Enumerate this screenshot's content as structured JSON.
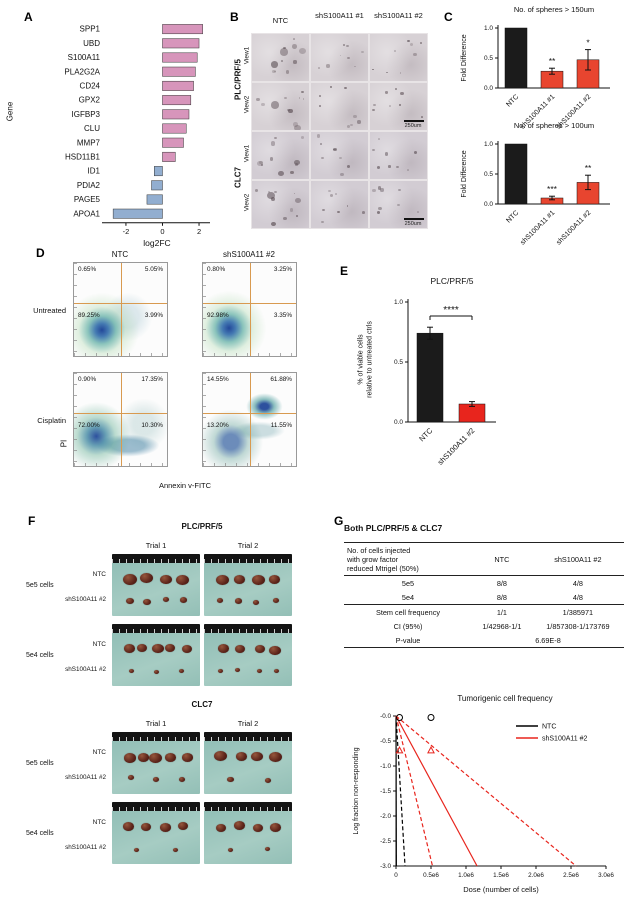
{
  "panelA": {
    "label": "A",
    "chart_data": {
      "type": "bar",
      "orientation": "horizontal",
      "xlabel": "log2FC",
      "ylabel": "Gene",
      "categories": [
        "SPP1",
        "UBD",
        "S100A11",
        "PLA2G2A",
        "CD24",
        "GPX2",
        "IGFBP3",
        "CLU",
        "MMP7",
        "HSD11B1",
        "ID1",
        "PDIA2",
        "PAGE5",
        "APOA1"
      ],
      "values": [
        2.2,
        2.0,
        1.9,
        1.8,
        1.7,
        1.55,
        1.45,
        1.3,
        1.15,
        0.7,
        -0.45,
        -0.6,
        -0.85,
        -2.7
      ],
      "xticks": [
        -2,
        0,
        2
      ],
      "xlim": [
        -3.2,
        2.6
      ],
      "up_color": "#d795bb",
      "down_color": "#92aed0"
    }
  },
  "panelB": {
    "label": "B",
    "col_headers": [
      "NTC",
      "shS100A11 #1",
      "shS100A11 #2"
    ],
    "row_groups": [
      {
        "label": "PLC/PRF/5",
        "views": [
          "View1",
          "View2"
        ],
        "scale_bar": "250um"
      },
      {
        "label": "CLC7",
        "views": [
          "View1",
          "View2"
        ],
        "scale_bar": "250um"
      }
    ]
  },
  "panelC": {
    "label": "C",
    "charts": [
      {
        "chart_data": {
          "type": "bar",
          "title": "No. of spheres > 150um",
          "ylabel": "Fold Difference",
          "categories": [
            "NTC",
            "shS100A11 #1",
            "shS100A11 #2"
          ],
          "values": [
            1.0,
            0.28,
            0.47
          ],
          "errors": [
            0,
            0.05,
            0.17
          ],
          "significance": [
            "",
            "**",
            "*"
          ],
          "yticks": [
            "0.0",
            "0.5",
            "1.0"
          ],
          "bar_colors": [
            "#1b1b1b",
            "#e8452f",
            "#e8452f"
          ]
        }
      },
      {
        "chart_data": {
          "type": "bar",
          "title": "No. of spheres > 100um",
          "ylabel": "Fold Difference",
          "categories": [
            "NTC",
            "shS100A11 #1",
            "shS100A11 #2"
          ],
          "values": [
            1.0,
            0.1,
            0.36
          ],
          "errors": [
            0,
            0.03,
            0.12
          ],
          "significance": [
            "",
            "***",
            "**"
          ],
          "yticks": [
            "0.0",
            "0.5",
            "1.0"
          ],
          "bar_colors": [
            "#1b1b1b",
            "#e8452f",
            "#e8452f"
          ]
        }
      }
    ]
  },
  "panelD": {
    "label": "D",
    "col_headers": [
      "NTC",
      "shS100A11 #2"
    ],
    "row_labels": [
      "Untreated",
      "Cisplatin"
    ],
    "xlabel": "Annexin v-FITC",
    "ylabel": "PI",
    "plots": [
      {
        "q_ul": "0.65%",
        "q_ur": "5.05%",
        "q_ll": "89.25%",
        "q_lr": "3.99%"
      },
      {
        "q_ul": "0.80%",
        "q_ur": "3.25%",
        "q_ll": "92.98%",
        "q_lr": "3.35%"
      },
      {
        "q_ul": "0.90%",
        "q_ur": "17.35%",
        "q_ll": "72.00%",
        "q_lr": "10.30%"
      },
      {
        "q_ul": "14.55%",
        "q_ur": "61.88%",
        "q_ll": "13.20%",
        "q_lr": "11.55%"
      }
    ]
  },
  "panelE": {
    "label": "E",
    "chart_data": {
      "type": "bar",
      "title": "PLC/PRF/5",
      "ylabel": "% of viable cells\nrelative to untreated ctrls",
      "categories": [
        "NTC",
        "shS100A11 #2"
      ],
      "values": [
        0.74,
        0.15
      ],
      "errors": [
        0.05,
        0.02
      ],
      "significance": "****",
      "yticks": [
        "0.0",
        "0.5",
        "1.0"
      ],
      "bar_colors": [
        "#1b1b1b",
        "#e8251d"
      ]
    }
  },
  "panelF": {
    "label": "F",
    "sections": [
      {
        "cell_line": "PLC/PRF/5",
        "trials": [
          "Trial 1",
          "Trial 2"
        ],
        "rows": [
          {
            "dose": "5e5 cells",
            "conditions": [
              "NTC",
              "shS100A11 #2"
            ]
          },
          {
            "dose": "5e4 cells",
            "conditions": [
              "NTC",
              "shS100A11 #2"
            ]
          }
        ]
      },
      {
        "cell_line": "CLC7",
        "trials": [
          "Trial 1",
          "Trial 2"
        ],
        "rows": [
          {
            "dose": "5e5 cells",
            "conditions": [
              "NTC",
              "shS100A11 #2"
            ]
          },
          {
            "dose": "5e4 cells",
            "conditions": [
              "NTC",
              "shS100A11 #2"
            ]
          }
        ]
      }
    ]
  },
  "panelG": {
    "label": "G",
    "table_title": "Both PLC/PRF/5 & CLC7",
    "table": {
      "header": [
        "No. of cells injected\nwith grow factor\nreduced Mtrigel (50%)",
        "NTC",
        "shS100A11 #2"
      ],
      "rows": [
        [
          "5e5",
          "8/8",
          "4/8"
        ],
        [
          "5e4",
          "8/8",
          "4/8"
        ],
        [
          "Stem cell frequency",
          "1/1",
          "1/385971"
        ],
        [
          "CI (95%)",
          "1/42968-1/1",
          "1/857308-1/173769"
        ],
        [
          "P-value",
          "6.69E-8"
        ]
      ]
    },
    "chart_data": {
      "type": "line",
      "title": "Tumorigenic cell frequency",
      "xlabel": "Dose (number of cells)",
      "ylabel": "Log fraction non-responding",
      "xlim": [
        0,
        3000000
      ],
      "ylim": [
        -3,
        0
      ],
      "xtick_labels": [
        "0",
        "0.5e6",
        "1.0e6",
        "1.5e6",
        "2.0e6",
        "2.5e6",
        "3.0e6"
      ],
      "xtick_values": [
        0,
        500000,
        1000000,
        1500000,
        2000000,
        2500000,
        3000000
      ],
      "ytick_labels": [
        "-0.0",
        "-0.5",
        "-1.0",
        "-1.5",
        "-2.0",
        "-2.5",
        "-3.0"
      ],
      "ytick_values": [
        0,
        -0.5,
        -1,
        -1.5,
        -2,
        -2.5,
        -3
      ],
      "legend": [
        {
          "label": "NTC",
          "color": "#000000"
        },
        {
          "label": "shS100A11 #2",
          "color": "#e8251d"
        }
      ],
      "series": [
        {
          "name": "NTC",
          "color": "#000000",
          "dash": false,
          "points": [
            [
              0,
              0
            ],
            [
              5000,
              -3
            ]
          ]
        },
        {
          "name": "NTC 95% CI",
          "color": "#000000",
          "dash": true,
          "points": [
            [
              0,
              0
            ],
            [
              128900,
              -3
            ]
          ]
        },
        {
          "name": "shS100A11 #2",
          "color": "#e8251d",
          "dash": false,
          "points": [
            [
              0,
              0
            ],
            [
              1157900,
              -3
            ]
          ]
        },
        {
          "name": "shS100A11 #2 95% CI lower",
          "color": "#e8251d",
          "dash": true,
          "points": [
            [
              0,
              0
            ],
            [
              521300,
              -3
            ]
          ]
        },
        {
          "name": "shS100A11 #2 95% CI upper",
          "color": "#e8251d",
          "dash": true,
          "points": [
            [
              0,
              0
            ],
            [
              2571900,
              -3
            ]
          ]
        }
      ],
      "markers": [
        {
          "shape": "circle",
          "color": "#000000",
          "dose": 500000,
          "y": -0.03
        },
        {
          "shape": "circle",
          "color": "#000000",
          "dose": 50000,
          "y": -0.03
        },
        {
          "shape": "triangle",
          "color": "#e8251d",
          "dose": 500000,
          "y": -0.69
        },
        {
          "shape": "triangle",
          "color": "#e8251d",
          "dose": 50000,
          "y": -0.69
        }
      ]
    }
  }
}
